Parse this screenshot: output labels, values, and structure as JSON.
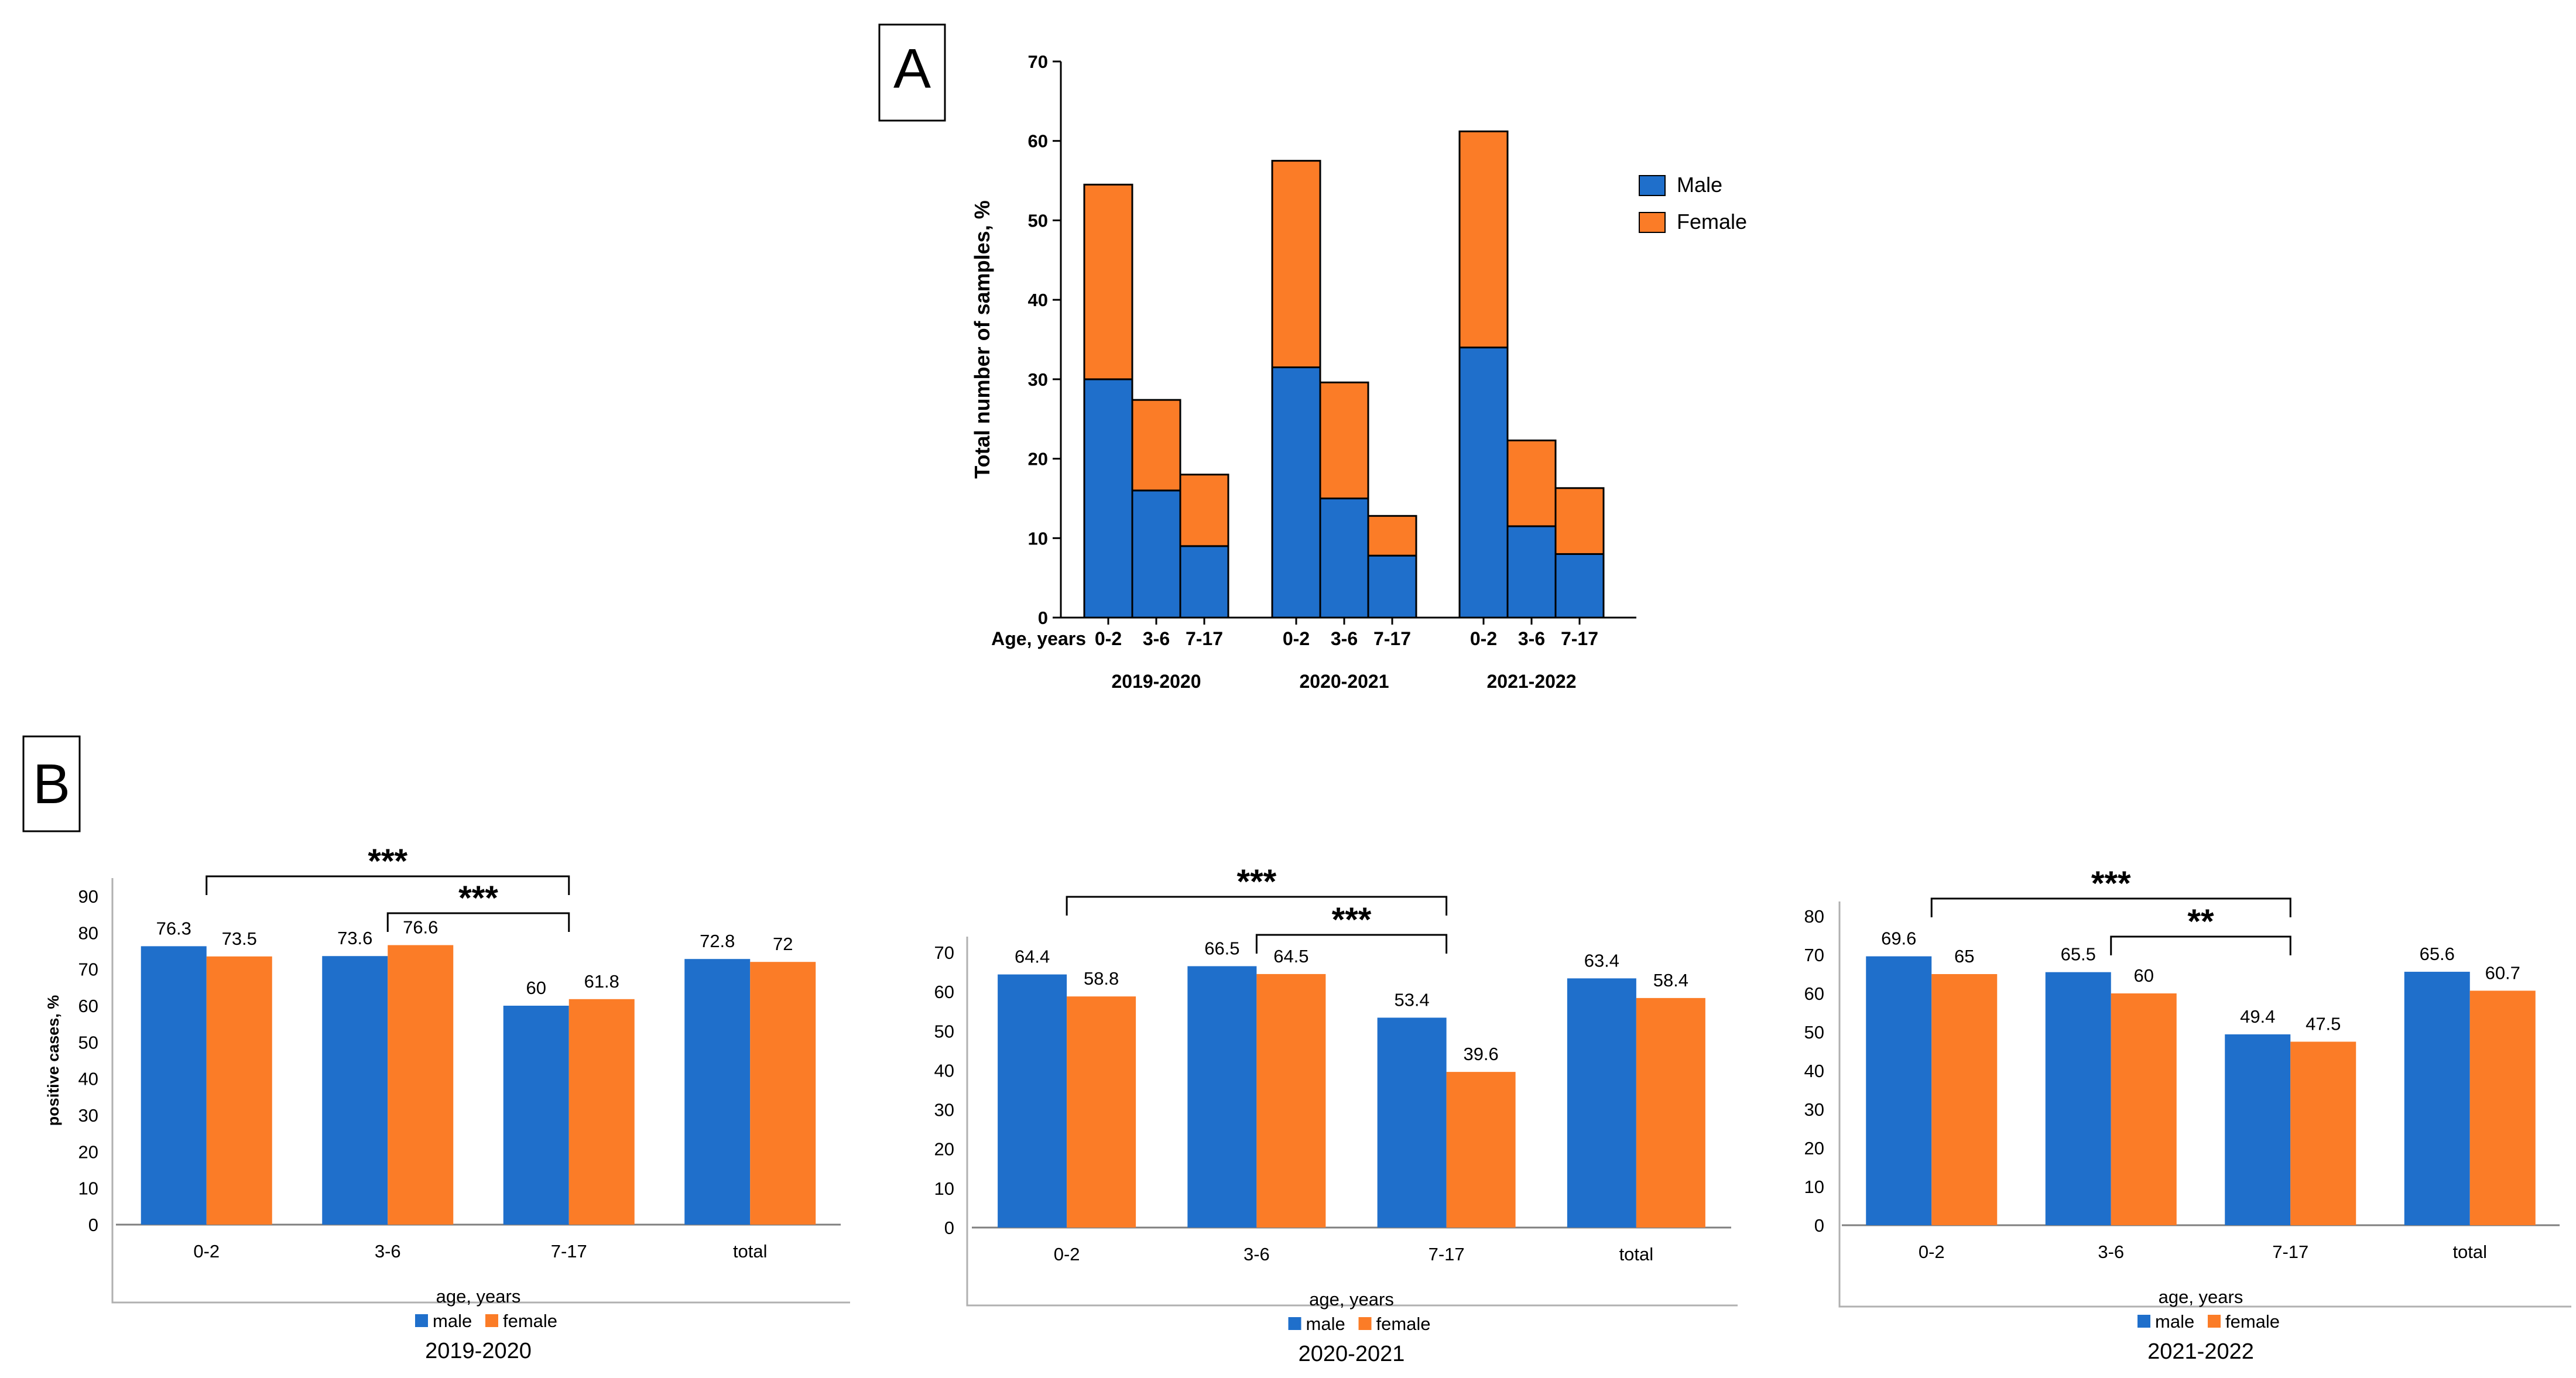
{
  "colors": {
    "male": "#1f6fcb",
    "female": "#fb7c27",
    "axis": "#000000",
    "frame": "#b0b0b0"
  },
  "panel_a": {
    "label": "A",
    "age_label": "Age, years",
    "legend": [
      "Male",
      "Female"
    ]
  },
  "panel_b": {
    "label": "B"
  },
  "chart_data": [
    {
      "type": "bar",
      "stacked": true,
      "title": "",
      "ylabel": "Total number of samples, %",
      "xlabel": "Age, years",
      "ylim": [
        0,
        70
      ],
      "yticks": [
        0,
        10,
        20,
        30,
        40,
        50,
        60,
        70
      ],
      "legend": [
        "Male",
        "Female"
      ],
      "legend_position": "right",
      "groups": [
        {
          "name": "2019-2020",
          "categories": [
            "0-2",
            "3-6",
            "7-17"
          ],
          "male": [
            30,
            16,
            9
          ],
          "female": [
            24.5,
            11.4,
            9
          ]
        },
        {
          "name": "2020-2021",
          "categories": [
            "0-2",
            "3-6",
            "7-17"
          ],
          "male": [
            31.5,
            15,
            7.8
          ],
          "female": [
            26,
            14.6,
            5
          ]
        },
        {
          "name": "2021-2022",
          "categories": [
            "0-2",
            "3-6",
            "7-17"
          ],
          "male": [
            34,
            11.5,
            8
          ],
          "female": [
            27.2,
            10.8,
            8.3
          ]
        }
      ]
    },
    {
      "type": "bar",
      "title": "2019-2020",
      "ylabel": "positive cases, %",
      "xlabel": "age, years",
      "ylim": [
        0,
        90
      ],
      "yticks": [
        0,
        10,
        20,
        30,
        40,
        50,
        60,
        70,
        80,
        90
      ],
      "categories": [
        "0-2",
        "3-6",
        "7-17",
        "total"
      ],
      "series": [
        {
          "name": "male",
          "values": [
            76.3,
            73.6,
            60,
            72.8
          ]
        },
        {
          "name": "female",
          "values": [
            73.5,
            76.6,
            61.8,
            72
          ]
        }
      ],
      "significance": [
        {
          "from": "0-2",
          "to": "7-17",
          "label": "***"
        },
        {
          "from": "3-6",
          "to": "7-17",
          "label": "***"
        }
      ]
    },
    {
      "type": "bar",
      "title": "2020-2021",
      "ylabel": "",
      "xlabel": "age, years",
      "ylim": [
        0,
        70
      ],
      "yticks": [
        0,
        10,
        20,
        30,
        40,
        50,
        60,
        70
      ],
      "categories": [
        "0-2",
        "3-6",
        "7-17",
        "total"
      ],
      "series": [
        {
          "name": "male",
          "values": [
            64.4,
            66.5,
            53.4,
            63.4
          ]
        },
        {
          "name": "female",
          "values": [
            58.8,
            64.5,
            39.6,
            58.4
          ]
        }
      ],
      "significance": [
        {
          "from": "0-2",
          "to": "7-17",
          "label": "***"
        },
        {
          "from": "3-6",
          "to": "7-17",
          "label": "***"
        }
      ]
    },
    {
      "type": "bar",
      "title": "2021-2022",
      "ylabel": "",
      "xlabel": "age, years",
      "ylim": [
        0,
        80
      ],
      "yticks": [
        0,
        10,
        20,
        30,
        40,
        50,
        60,
        70,
        80
      ],
      "categories": [
        "0-2",
        "3-6",
        "7-17",
        "total"
      ],
      "series": [
        {
          "name": "male",
          "values": [
            69.6,
            65.5,
            49.4,
            65.6
          ]
        },
        {
          "name": "female",
          "values": [
            65,
            60,
            47.5,
            60.7
          ]
        }
      ],
      "significance": [
        {
          "from": "0-2",
          "to": "7-17",
          "label": "***"
        },
        {
          "from": "3-6",
          "to": "7-17",
          "label": "**"
        }
      ]
    }
  ]
}
